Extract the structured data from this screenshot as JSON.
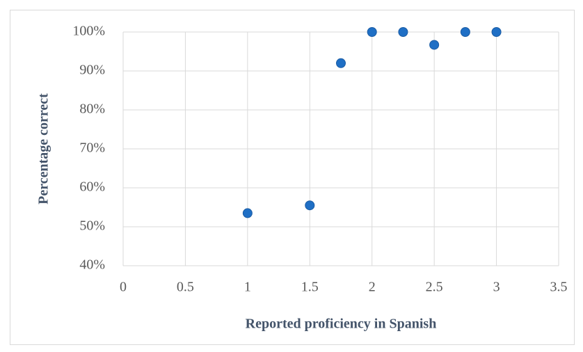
{
  "chart_data": {
    "type": "scatter",
    "x_label": "Reported proficiency in Spanish",
    "y_label": "Percentage correct",
    "series": [
      {
        "color": "#1f6fc5",
        "x": [
          1,
          1.5,
          1.75,
          2,
          2.25,
          2.5,
          2.75,
          3
        ],
        "values": [
          53.5,
          55.5,
          92,
          100,
          100,
          96.7,
          100,
          100
        ]
      }
    ],
    "xlim": [
      0,
      3.5
    ],
    "xticks": [
      0,
      0.5,
      1,
      1.5,
      2,
      2.5,
      3,
      3.5
    ],
    "ylim": [
      40,
      100
    ],
    "yticks": [
      {
        "value": 40,
        "label": "40%"
      },
      {
        "value": 50,
        "label": "50%"
      },
      {
        "value": 60,
        "label": "60%"
      },
      {
        "value": 70,
        "label": "70%"
      },
      {
        "value": 80,
        "label": "80%"
      },
      {
        "value": 90,
        "label": "90%"
      },
      {
        "value": 100,
        "label": "100%"
      }
    ],
    "grid": true
  }
}
